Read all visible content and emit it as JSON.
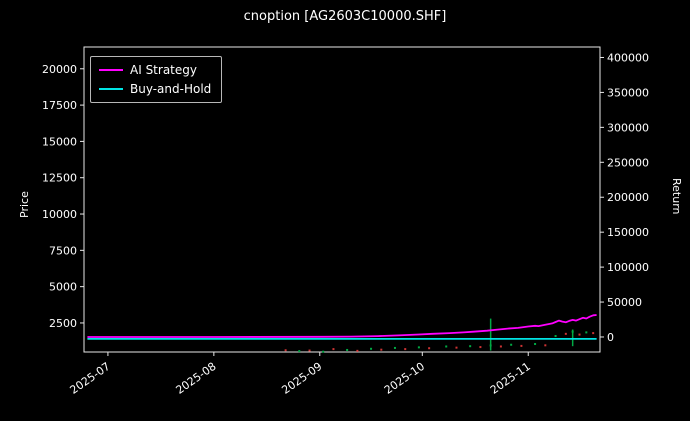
{
  "chart_data": {
    "type": "line",
    "title": "cnoption [AG2603C10000.SHF]",
    "ylabel_left": "Price",
    "ylabel_right": "Return",
    "background": "#000000",
    "text_color": "#ffffff",
    "grid": false,
    "x_domain": [
      "2025-06-24",
      "2025-11-22"
    ],
    "x_ticks": [
      {
        "date": "2025-07-01",
        "label": "2025-07"
      },
      {
        "date": "2025-08-01",
        "label": "2025-08"
      },
      {
        "date": "2025-09-01",
        "label": "2025-09"
      },
      {
        "date": "2025-10-01",
        "label": "2025-10"
      },
      {
        "date": "2025-11-01",
        "label": "2025-11"
      }
    ],
    "left_axis": {
      "lim": [
        500,
        21500
      ],
      "ticks": [
        2500,
        5000,
        7500,
        10000,
        12500,
        15000,
        17500,
        20000
      ]
    },
    "right_axis": {
      "lim": [
        -21500,
        415000
      ],
      "ticks": [
        0,
        50000,
        100000,
        150000,
        200000,
        250000,
        300000,
        350000,
        400000
      ]
    },
    "legend": {
      "position": "top-left",
      "entries": [
        {
          "label": "AI Strategy",
          "color": "#ff00ff"
        },
        {
          "label": "Buy-and-Hold",
          "color": "#00e5e5"
        }
      ]
    },
    "series": [
      {
        "name": "AI Strategy",
        "axis": "right",
        "color": "#ff00ff",
        "points": [
          [
            "2025-06-25",
            0
          ],
          [
            "2025-08-01",
            0
          ],
          [
            "2025-09-01",
            300
          ],
          [
            "2025-09-10",
            600
          ],
          [
            "2025-09-18",
            1200
          ],
          [
            "2025-09-24",
            2200
          ],
          [
            "2025-09-30",
            3500
          ],
          [
            "2025-10-04",
            4500
          ],
          [
            "2025-10-09",
            5500
          ],
          [
            "2025-10-13",
            6500
          ],
          [
            "2025-10-16",
            7500
          ],
          [
            "2025-10-20",
            9000
          ],
          [
            "2025-10-23",
            10500
          ],
          [
            "2025-10-26",
            12000
          ],
          [
            "2025-10-29",
            13000
          ],
          [
            "2025-11-01",
            15000
          ],
          [
            "2025-11-03",
            16000
          ],
          [
            "2025-11-04",
            15500
          ],
          [
            "2025-11-06",
            17500
          ],
          [
            "2025-11-08",
            19500
          ],
          [
            "2025-11-09",
            21500
          ],
          [
            "2025-11-10",
            23500
          ],
          [
            "2025-11-11",
            22000
          ],
          [
            "2025-11-12",
            21000
          ],
          [
            "2025-11-13",
            23000
          ],
          [
            "2025-11-14",
            24500
          ],
          [
            "2025-11-15",
            23500
          ],
          [
            "2025-11-16",
            25500
          ],
          [
            "2025-11-17",
            27500
          ],
          [
            "2025-11-18",
            26500
          ],
          [
            "2025-11-19",
            29000
          ],
          [
            "2025-11-20",
            31000
          ],
          [
            "2025-11-21",
            31500
          ]
        ]
      },
      {
        "name": "Buy-and-Hold",
        "axis": "left",
        "color": "#00e5e5",
        "points": [
          [
            "2025-06-25",
            1400
          ],
          [
            "2025-11-21",
            1400
          ]
        ]
      }
    ],
    "price_marks": [
      {
        "date": "2025-08-22",
        "value": 620,
        "color": "#cc3333"
      },
      {
        "date": "2025-08-26",
        "value": 560,
        "color": "#00aa44"
      },
      {
        "date": "2025-08-29",
        "value": 600,
        "color": "#cc3333"
      },
      {
        "date": "2025-09-02",
        "value": 520,
        "color": "#00aa44"
      },
      {
        "date": "2025-09-05",
        "value": 700,
        "color": "#cc3333"
      },
      {
        "date": "2025-09-09",
        "value": 640,
        "color": "#00aa44"
      },
      {
        "date": "2025-09-12",
        "value": 580,
        "color": "#cc3333"
      },
      {
        "date": "2025-09-16",
        "value": 720,
        "color": "#00aa44"
      },
      {
        "date": "2025-09-19",
        "value": 660,
        "color": "#cc3333"
      },
      {
        "date": "2025-09-23",
        "value": 780,
        "color": "#00aa44"
      },
      {
        "date": "2025-09-26",
        "value": 700,
        "color": "#cc3333"
      },
      {
        "date": "2025-09-30",
        "value": 820,
        "color": "#00aa44"
      },
      {
        "date": "2025-10-03",
        "value": 760,
        "color": "#cc3333"
      },
      {
        "date": "2025-10-08",
        "value": 880,
        "color": "#00aa44"
      },
      {
        "date": "2025-10-11",
        "value": 800,
        "color": "#cc3333"
      },
      {
        "date": "2025-10-15",
        "value": 900,
        "color": "#00aa44"
      },
      {
        "date": "2025-10-18",
        "value": 840,
        "color": "#cc3333"
      },
      {
        "date": "2025-10-21",
        "value": 950,
        "color": "#00aa44"
      },
      {
        "date": "2025-10-24",
        "value": 880,
        "color": "#cc3333"
      },
      {
        "date": "2025-10-27",
        "value": 1000,
        "color": "#00aa44"
      },
      {
        "date": "2025-10-30",
        "value": 920,
        "color": "#cc3333"
      },
      {
        "date": "2025-11-03",
        "value": 1050,
        "color": "#00aa44"
      },
      {
        "date": "2025-11-06",
        "value": 960,
        "color": "#cc3333"
      },
      {
        "date": "2025-11-09",
        "value": 1600,
        "color": "#00aa44"
      },
      {
        "date": "2025-11-12",
        "value": 1750,
        "color": "#cc3333"
      },
      {
        "date": "2025-11-14",
        "value": 1900,
        "color": "#00aa44"
      },
      {
        "date": "2025-11-16",
        "value": 1700,
        "color": "#cc3333"
      },
      {
        "date": "2025-11-18",
        "value": 1850,
        "color": "#00aa44"
      },
      {
        "date": "2025-11-20",
        "value": 1800,
        "color": "#cc3333"
      }
    ],
    "spikes": [
      {
        "date": "2025-10-21",
        "low": 600,
        "high": 2800,
        "color": "#00aa44"
      },
      {
        "date": "2025-11-14",
        "low": 900,
        "high": 2050,
        "color": "#00aa44"
      }
    ]
  }
}
